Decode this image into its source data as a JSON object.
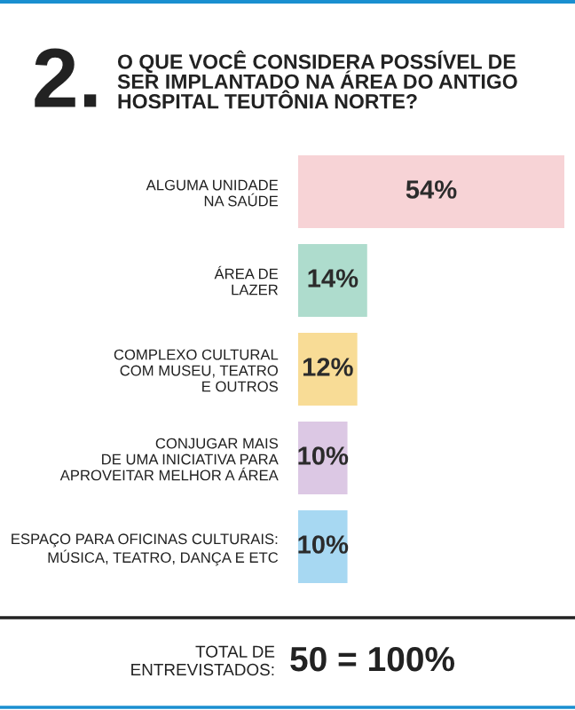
{
  "chart_data": {
    "type": "bar",
    "orientation": "horizontal",
    "title": "O QUE VOCÊ CONSIDERA POSSÍVEL DE\nSER IMPLANTADO NA ÁREA DO ANTIGO\nHOSPITAL TEUTÔNIA NORTE?",
    "categories": [
      "ALGUMA UNIDADE\nNA SAÚDE",
      "ÁREA DE\nLAZER",
      "COMPLEXO CULTURAL\nCOM MUSEU, TEATRO\nE OUTROS",
      "CONJUGAR MAIS\nDE UMA INICIATIVA PARA\nAPROVEITAR MELHOR A ÁREA",
      "ESPAÇO PARA OFICINAS CULTURAIS:\nMÚSICA, TEATRO, DANÇA E ETC"
    ],
    "values": [
      54,
      14,
      12,
      10,
      10
    ],
    "value_labels": [
      "54%",
      "14%",
      "12%",
      "10%",
      "10%"
    ],
    "colors": [
      "#f7d3d6",
      "#aedccd",
      "#f8dc96",
      "#dcc8e4",
      "#a7d8f2"
    ],
    "annotations": [
      "2.",
      "TOTAL DE\nENTREVISTADOS:",
      "50 = 100%"
    ],
    "grid": false,
    "legend": false
  }
}
